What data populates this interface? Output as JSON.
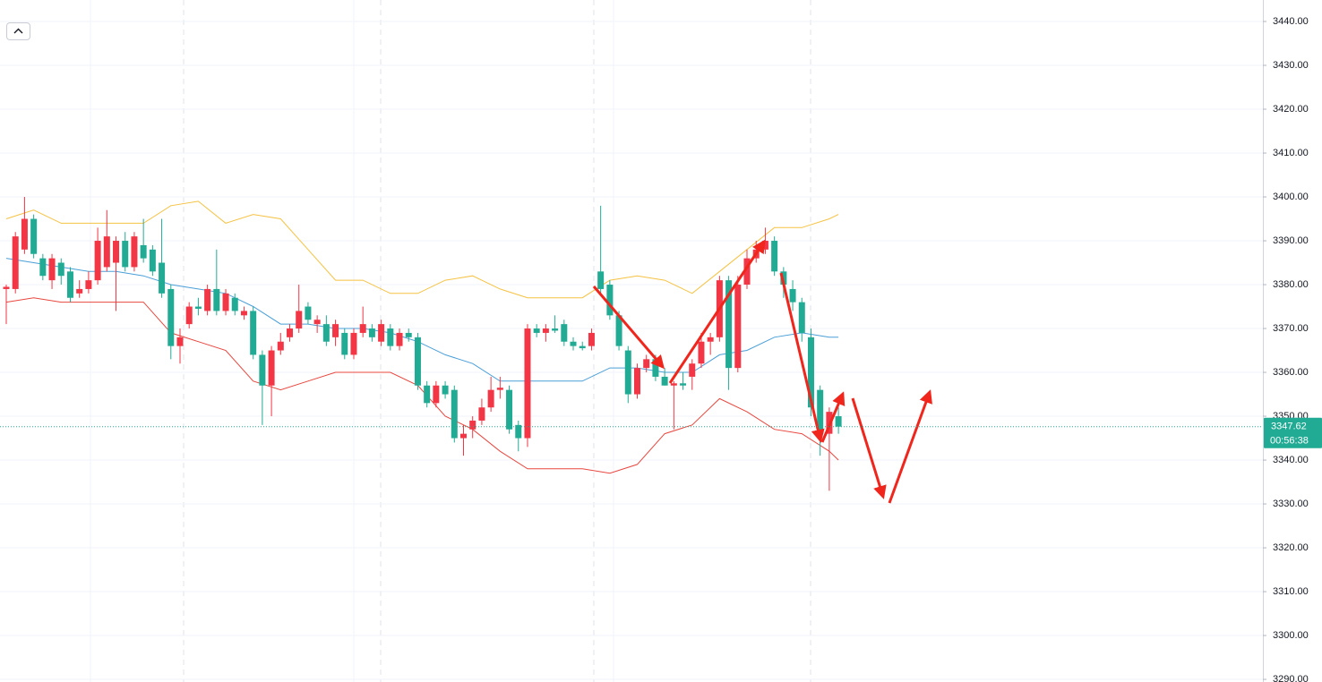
{
  "chart_data": {
    "type": "candlestick",
    "up_color": "#f23645",
    "down_color": "#22ab94",
    "ylim": [
      3289.4,
      3444.9
    ],
    "yticks": [
      {
        "value": 3290,
        "label": "3290.00"
      },
      {
        "value": 3300,
        "label": "3300.00"
      },
      {
        "value": 3310,
        "label": "3310.00"
      },
      {
        "value": 3320,
        "label": "3320.00"
      },
      {
        "value": 3330,
        "label": "3330.00"
      },
      {
        "value": 3340,
        "label": "3340.00"
      },
      {
        "value": 3350,
        "label": "3350.00"
      },
      {
        "value": 3360,
        "label": "3360.00"
      },
      {
        "value": 3370,
        "label": "3370.00"
      },
      {
        "value": 3380,
        "label": "3380.00"
      },
      {
        "value": 3390,
        "label": "3390.00"
      },
      {
        "value": 3400,
        "label": "3400.00"
      },
      {
        "value": 3410,
        "label": "3410.00"
      },
      {
        "value": 3420,
        "label": "3420.00"
      },
      {
        "value": 3430,
        "label": "3430.00"
      },
      {
        "value": 3440,
        "label": "3440.00"
      }
    ],
    "grid": true,
    "open": [
      3379,
      3379,
      3388,
      3395,
      3386,
      3381,
      3385,
      3383,
      3378,
      3379,
      3381,
      3384,
      3385,
      3390,
      3384,
      3389,
      3388,
      3385,
      3379,
      3366,
      3371,
      3375,
      3374,
      3379,
      3374,
      3377,
      3373,
      3374,
      3364,
      3357,
      3365,
      3368,
      3370,
      3375,
      3371,
      3371,
      3368,
      3369,
      3364,
      3369,
      3370,
      3367,
      3370,
      3366,
      3369,
      3368,
      3357,
      3353,
      3357,
      3356,
      3345,
      3347,
      3349,
      3352,
      3356,
      3356,
      3348,
      3345,
      3370,
      3369,
      3370,
      3371,
      3367,
      3366,
      3366,
      3383,
      3380,
      3373,
      3365,
      3355,
      3361,
      3363,
      3359,
      3357,
      3357.5,
      3359,
      3362,
      3367,
      3368,
      3381,
      3361,
      3380,
      3386,
      3388,
      3390,
      3383,
      3379,
      3376,
      3368,
      3356,
      3346,
      3350
    ],
    "close": [
      3379.5,
      3391,
      3395,
      3387,
      3382,
      3386,
      3382,
      3377,
      3379,
      3381,
      3390,
      3391,
      3390,
      3384,
      3391,
      3386,
      3383,
      3378,
      3366,
      3368,
      3375,
      3374.5,
      3379,
      3374,
      3378,
      3374,
      3374,
      3364,
      3357,
      3365,
      3367,
      3370,
      3374,
      3372,
      3372,
      3367,
      3371,
      3364,
      3369,
      3371,
      3368,
      3371,
      3366,
      3369,
      3368,
      3357,
      3353,
      3357,
      3355,
      3345,
      3346,
      3349,
      3352,
      3356,
      3356.5,
      3347,
      3345,
      3370,
      3369,
      3370,
      3369.5,
      3367,
      3366,
      3365.5,
      3369,
      3379,
      3373,
      3366,
      3355,
      3361,
      3363,
      3359,
      3357,
      3357.5,
      3357,
      3362,
      3367,
      3368,
      3381,
      3361,
      3380,
      3386,
      3388,
      3390,
      3383,
      3380,
      3376,
      3369,
      3352,
      3346,
      3351,
      3347.62
    ],
    "high": [
      3380,
      3392,
      3400,
      3396,
      3387,
      3387,
      3386,
      3384,
      3381,
      3383,
      3393,
      3397,
      3391,
      3392,
      3392,
      3395,
      3389,
      3395,
      3380,
      3370,
      3376,
      3377,
      3380,
      3388,
      3379,
      3378,
      3375,
      3375,
      3365,
      3366,
      3369,
      3371,
      3380,
      3376,
      3373,
      3373,
      3372,
      3370,
      3370,
      3375,
      3371,
      3372,
      3371,
      3370,
      3370,
      3369,
      3358,
      3358,
      3358,
      3357,
      3348,
      3350,
      3354,
      3359,
      3359,
      3357,
      3349,
      3371,
      3371,
      3371,
      3373,
      3372,
      3368,
      3367,
      3370,
      3398,
      3381,
      3374,
      3366,
      3362,
      3364,
      3364,
      3361,
      3358,
      3360,
      3363,
      3369,
      3369,
      3382,
      3382,
      3382,
      3388,
      3390,
      3393,
      3391,
      3384,
      3381,
      3377,
      3370,
      3357,
      3352,
      3352
    ],
    "low": [
      3371,
      3378,
      3387,
      3386,
      3381,
      3379,
      3380,
      3376,
      3377,
      3378,
      3380,
      3383,
      3374,
      3383,
      3383,
      3385,
      3382,
      3377,
      3363,
      3362,
      3370,
      3373,
      3373,
      3373,
      3373,
      3373,
      3372,
      3363,
      3348,
      3350,
      3364,
      3367,
      3369,
      3371,
      3369,
      3366,
      3366,
      3363,
      3363,
      3368,
      3367,
      3366,
      3365,
      3365,
      3367,
      3356,
      3352,
      3352,
      3354,
      3344,
      3341,
      3345,
      3348,
      3351,
      3354,
      3346,
      3342,
      3343,
      3368,
      3367,
      3369,
      3366,
      3365,
      3365,
      3365,
      3378,
      3372,
      3365,
      3353,
      3354,
      3360,
      3358,
      3357,
      3347,
      3356,
      3356,
      3361,
      3364,
      3367,
      3356,
      3360,
      3379,
      3385,
      3387,
      3382,
      3377,
      3374,
      3367,
      3350,
      3341,
      3333,
      3346
    ],
    "bands": [
      {
        "color": "#f5c242",
        "x": [
          0,
          3,
          6,
          9,
          12,
          15,
          18,
          21,
          24,
          27,
          30,
          33,
          36,
          39,
          42,
          45,
          48,
          51,
          54,
          57,
          60,
          63,
          66,
          69,
          72,
          75,
          78,
          81,
          84,
          87,
          90,
          91
        ],
        "values": [
          3395,
          3397,
          3394,
          3394,
          3394,
          3394,
          3398,
          3399,
          3394,
          3396,
          3395,
          3388,
          3381,
          3381,
          3378,
          3378,
          3381,
          3382,
          3379,
          3377,
          3377,
          3377,
          3381,
          3382,
          3381,
          3378,
          3383,
          3388,
          3393,
          3393,
          3395,
          3396
        ]
      },
      {
        "color": "#4a9fd8",
        "x": [
          0,
          3,
          6,
          9,
          12,
          15,
          18,
          21,
          24,
          27,
          30,
          33,
          36,
          39,
          42,
          45,
          48,
          51,
          54,
          57,
          60,
          63,
          66,
          69,
          72,
          75,
          78,
          81,
          84,
          87,
          90,
          91
        ],
        "values": [
          3386,
          3385,
          3384,
          3383,
          3383,
          3382,
          3380,
          3379,
          3378,
          3375,
          3371,
          3371,
          3370,
          3370,
          3369,
          3367,
          3364,
          3362,
          3358,
          3358,
          3358,
          3358,
          3361,
          3361,
          3360,
          3360,
          3364,
          3365,
          3368,
          3369,
          3368,
          3368
        ]
      },
      {
        "color": "#e8473f",
        "x": [
          0,
          3,
          6,
          9,
          12,
          15,
          18,
          21,
          24,
          27,
          30,
          33,
          36,
          39,
          42,
          45,
          48,
          51,
          54,
          57,
          60,
          63,
          66,
          69,
          72,
          75,
          78,
          81,
          84,
          87,
          90,
          91
        ],
        "values": [
          3376,
          3377,
          3376,
          3376,
          3376,
          3376,
          3369,
          3367,
          3365,
          3358,
          3356,
          3358,
          3360,
          3360,
          3360,
          3357,
          3350,
          3347,
          3342,
          3338,
          3338,
          3338,
          3337,
          3339,
          3346,
          3348,
          3354,
          3351,
          3347,
          3346,
          3342,
          3340
        ]
      }
    ],
    "current_price": 3347.62,
    "price_color": "#22ab94",
    "countdown": "00:56:38"
  }
}
